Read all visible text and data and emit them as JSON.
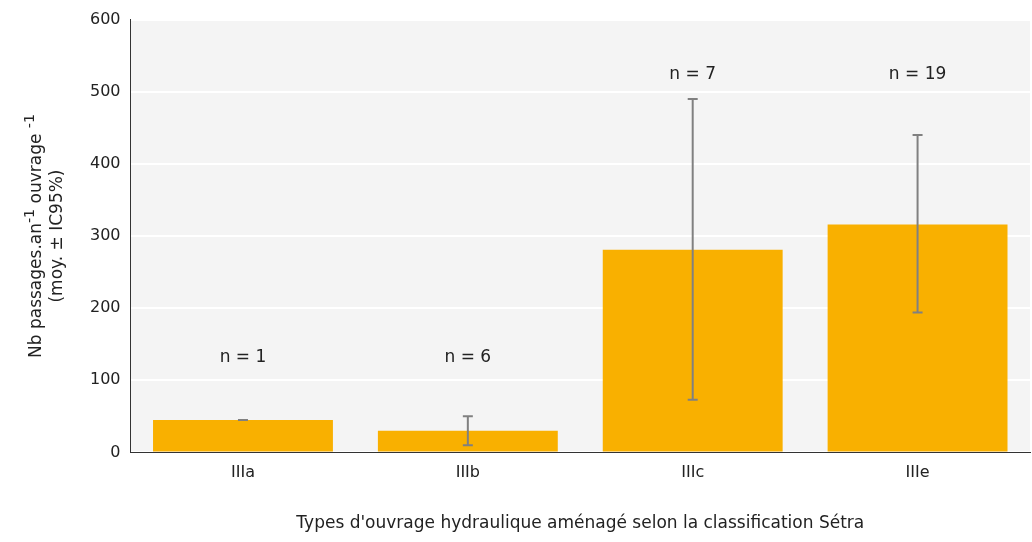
{
  "chart_data": {
    "type": "bar",
    "xlabel": "Types d'ouvrage hydraulique aménagé selon la classification Sétra",
    "ylabel": "Nb passages.an$^{-1}$ ouvrage $^{-1}$\n(moy. ± IC95%)",
    "categories": [
      "IIIa",
      "IIIb",
      "IIIc",
      "IIIe"
    ],
    "values": [
      45,
      30,
      281,
      316
    ],
    "color": "#f9b000",
    "errors": [
      [
        45,
        45
      ],
      [
        10,
        50
      ],
      [
        73,
        490
      ],
      [
        194,
        440
      ]
    ],
    "ylim": [
      0,
      600
    ],
    "yticks": [
      0,
      100,
      200,
      300,
      400,
      500,
      600
    ],
    "grid": "y",
    "legend": false,
    "annotations": [
      "n = 1",
      "n = 6",
      "n = 7",
      "n = 19"
    ]
  }
}
